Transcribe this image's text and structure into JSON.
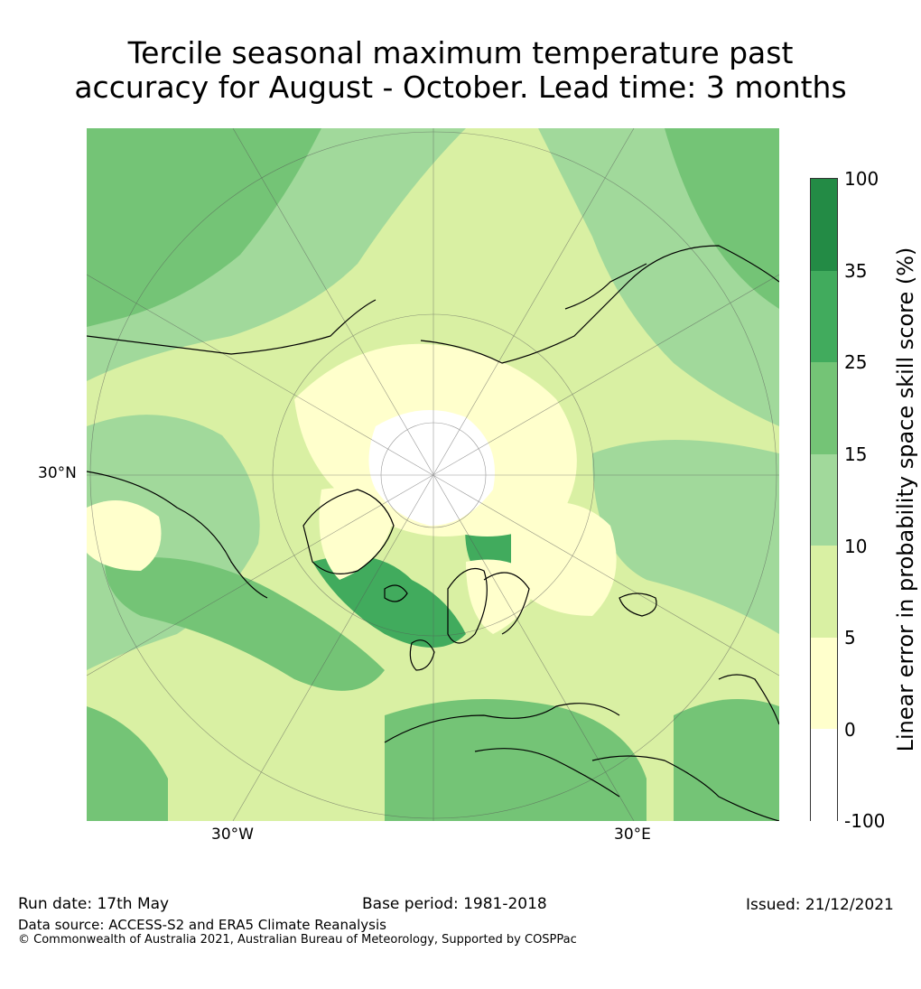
{
  "title_line1": "Tercile seasonal maximum temperature past",
  "title_line2": "accuracy for August - October. Lead time: 3 months",
  "map": {
    "lat_label": "30°N",
    "lon_label_west": "30°W",
    "lon_label_east": "30°E"
  },
  "colorbar": {
    "label": "Linear error in probability space skill score (%)",
    "ticks": [
      "100",
      "35",
      "25",
      "15",
      "10",
      "5",
      "0",
      "-100"
    ],
    "colors": [
      "#238b45",
      "#41ab5d",
      "#74c476",
      "#a1d99b",
      "#d9f0a3",
      "#ffffcc",
      "#ffffff"
    ]
  },
  "footer": {
    "run_date": "Run date: 17th May",
    "base_period": "Base period: 1981-2018",
    "issued": "Issued: 21/12/2021",
    "data_source": "Data source: ACCESS-S2 and ERA5 Climate Reanalysis",
    "copyright": "© Commonwealth of Australia 2021, Australian Bureau of Meteorology, Supported by COSPPac"
  }
}
